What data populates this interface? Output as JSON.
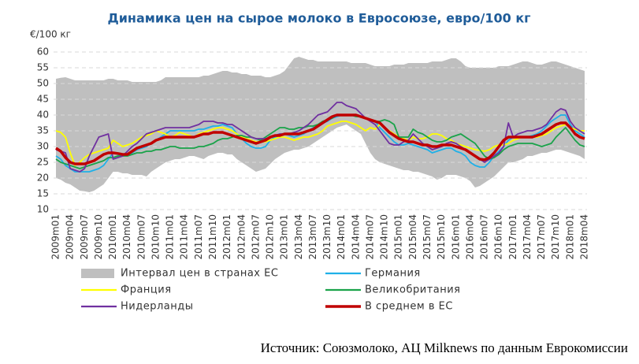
{
  "chart_data": {
    "type": "line",
    "title": "Динамика цен на сырое молоко в Евросоюзе, евро/100 кг",
    "y_axis_label": "€/100 кг",
    "source": "Источник: Союзмолоко, АЦ Milknews по данным Еврокомиссии",
    "categories": [
      "2009m01",
      null,
      null,
      "2009m04",
      null,
      null,
      "2009m07",
      null,
      null,
      "2009m10",
      null,
      null,
      "2010m01",
      null,
      null,
      "2010m04",
      null,
      null,
      "2010m07",
      null,
      null,
      "2010m10",
      null,
      null,
      "2011m01",
      null,
      null,
      "2011m04",
      null,
      null,
      "2011m07",
      null,
      null,
      "2011m10",
      null,
      null,
      "2012m01",
      null,
      null,
      "2012m04",
      null,
      null,
      "2012m07",
      null,
      null,
      "2012m10",
      null,
      null,
      "2013m01",
      null,
      null,
      "2013m04",
      null,
      null,
      "2013m07",
      null,
      null,
      "2013m10",
      null,
      null,
      "2014m01",
      null,
      null,
      "2014m04",
      null,
      null,
      "2014m07",
      null,
      null,
      "2014m10",
      null,
      null,
      "2015m01",
      null,
      null,
      "2015m04",
      null,
      null,
      "2015m07",
      null,
      null,
      "2015m10",
      null,
      null,
      "2016m01",
      null,
      null,
      "2016m04",
      null,
      null,
      "2016m07",
      null,
      null,
      "2016m10",
      null,
      null,
      "2017m01",
      null,
      null,
      "2017m04",
      null,
      null,
      "2017m07",
      null,
      null,
      "2017m10",
      null,
      null,
      "2018m01",
      null,
      null,
      "2018m04"
    ],
    "ylim": [
      10,
      60
    ],
    "yticks": [
      10,
      15,
      20,
      25,
      30,
      35,
      40,
      45,
      50,
      55,
      60
    ],
    "grid": true,
    "series": [
      {
        "name": "Интервал цен в странах ЕС",
        "color": "#bfbfbf",
        "high": [
          51.5,
          51.8,
          52,
          51.5,
          51,
          51,
          51,
          51,
          51,
          51,
          51,
          51.5,
          51.5,
          51,
          51,
          51,
          50.5,
          50.5,
          50.5,
          50.5,
          50.5,
          50.5,
          51,
          52,
          52,
          52,
          52,
          52,
          52,
          52,
          52,
          52.5,
          52.5,
          53,
          53.5,
          54,
          54,
          53.5,
          53.5,
          53,
          53,
          52.5,
          52.5,
          52.5,
          52,
          52,
          52.5,
          53,
          54,
          56,
          58,
          58.5,
          58,
          57.5,
          57.5,
          57,
          57,
          57,
          57,
          57,
          57,
          57,
          56.5,
          56.5,
          56.5,
          56.5,
          56,
          55.5,
          55.5,
          55.5,
          55.5,
          56,
          56,
          56,
          56.5,
          56.5,
          56.5,
          56.5,
          56.5,
          57,
          57,
          57,
          57.5,
          58,
          58,
          57,
          55.5,
          55,
          55,
          55,
          55,
          55,
          55,
          55.5,
          55.5,
          55.5,
          56,
          56.5,
          57,
          57,
          56.5,
          56,
          56,
          56.5,
          57,
          57,
          56.5,
          56,
          55.5,
          55,
          54.5,
          54
        ],
        "low": [
          20,
          19.5,
          18.5,
          18,
          17,
          16,
          15.8,
          15.5,
          16,
          17,
          18,
          20,
          22,
          22,
          21.5,
          21.5,
          21,
          21,
          21,
          20.5,
          22,
          23,
          24,
          25,
          25.5,
          26,
          26,
          26.5,
          27,
          27,
          26.5,
          26,
          27,
          27.5,
          28,
          28,
          27.5,
          27.5,
          26,
          25,
          24,
          23,
          22,
          22.5,
          23,
          24.5,
          26,
          27,
          28,
          28.5,
          29,
          29,
          29.5,
          30,
          31,
          32,
          33,
          34,
          35,
          36,
          36.5,
          37,
          36,
          35,
          34,
          31,
          28,
          26,
          25,
          24.5,
          24,
          23.5,
          23,
          22.5,
          22.5,
          22,
          22,
          21.5,
          21,
          20.5,
          19.5,
          20,
          21,
          21,
          21,
          20.5,
          20,
          19,
          17,
          17.5,
          18.5,
          19.5,
          20.5,
          22,
          23.5,
          25,
          25,
          25.5,
          26,
          27,
          27,
          27.5,
          28,
          28,
          28.5,
          29,
          29,
          28.5,
          28,
          27.5,
          27,
          26
        ]
      },
      {
        "name": "Германия",
        "color": "#1fb0e8",
        "values": [
          27,
          26,
          24,
          23,
          22,
          22,
          22,
          22,
          22.5,
          23,
          24,
          26,
          28,
          27.5,
          27,
          27.5,
          28,
          29,
          29.5,
          30,
          31,
          32,
          33,
          34,
          35,
          35,
          35,
          35,
          35,
          35,
          35.5,
          35.5,
          36,
          36.5,
          36.5,
          37,
          36.5,
          36,
          34,
          32.5,
          31,
          30,
          29.5,
          29.5,
          30,
          32,
          33,
          33.5,
          34,
          33.5,
          33,
          33.5,
          34,
          35,
          36,
          36.5,
          37.5,
          38,
          39,
          39.5,
          40,
          40,
          40,
          40,
          39.5,
          39,
          38.5,
          38,
          36,
          34.5,
          33,
          31.5,
          30.5,
          30.5,
          31,
          30.5,
          30,
          29.5,
          29,
          28,
          28.5,
          29,
          29.5,
          29.5,
          28.5,
          28,
          27,
          25,
          24,
          23.5,
          23.5,
          25,
          27,
          28.5,
          30,
          32,
          33,
          33,
          33,
          33,
          33.5,
          34,
          35,
          36.5,
          38,
          39,
          40,
          40,
          37,
          35,
          34,
          33
        ]
      },
      {
        "name": "Франция",
        "color": "#ffff00",
        "values": [
          35,
          34.5,
          33,
          28,
          24,
          25,
          26.5,
          27.5,
          28,
          28.5,
          29,
          29.5,
          32,
          31,
          30,
          30.5,
          31,
          32,
          33,
          33.5,
          34,
          35,
          34.5,
          34,
          33,
          33.5,
          34.5,
          34,
          33.5,
          33,
          34,
          34.5,
          35,
          35.5,
          36,
          36,
          35.5,
          35,
          34,
          33,
          32.5,
          32,
          31.5,
          31.5,
          31.5,
          32,
          32.5,
          33,
          33,
          32.5,
          32,
          32.5,
          33,
          33,
          33.5,
          34,
          35,
          36.5,
          37,
          37.5,
          38,
          38,
          37.5,
          37,
          36,
          35,
          36,
          35.5,
          37,
          36,
          35,
          34,
          33,
          32.5,
          32,
          33,
          32.5,
          32.5,
          33,
          34,
          34,
          33.5,
          32.5,
          32,
          31,
          30.5,
          30,
          29.5,
          29,
          28.8,
          28.5,
          29,
          30,
          30.5,
          30.5,
          31,
          32,
          32.5,
          33,
          33,
          33,
          33,
          33.5,
          34,
          35,
          36,
          36.5,
          37,
          36,
          35.5,
          35,
          35
        ]
      },
      {
        "name": "Великобритания",
        "color": "#1aa34a",
        "values": [
          26,
          25,
          24.5,
          24,
          23.5,
          23,
          23.5,
          24,
          24.5,
          25,
          25.5,
          26.5,
          26.5,
          27,
          27,
          27,
          27.5,
          28,
          28,
          28.5,
          28.5,
          29,
          29,
          29.5,
          30,
          30,
          29.5,
          29.5,
          29.5,
          29.5,
          30,
          30,
          30.5,
          31,
          32,
          32.5,
          32.5,
          33,
          33.5,
          33.5,
          33,
          33,
          32.5,
          32,
          33,
          34,
          35,
          36,
          36,
          35.5,
          35.5,
          36,
          36,
          36.5,
          36.5,
          37,
          38,
          38.5,
          39,
          40,
          40,
          40,
          40,
          39.5,
          39.5,
          39,
          38.5,
          38,
          38,
          38.5,
          38,
          37,
          33,
          33,
          33,
          35.5,
          34.5,
          34,
          33,
          32,
          31.5,
          31.5,
          32,
          33,
          33.5,
          34,
          33,
          32,
          31,
          29,
          27,
          26,
          26.5,
          27.5,
          29,
          30,
          30.5,
          31,
          31,
          31,
          31,
          30.5,
          30,
          30.5,
          31,
          33,
          34.5,
          36,
          34,
          32,
          30.5,
          30
        ]
      },
      {
        "name": "Нидерланды",
        "color": "#7030a0",
        "values": [
          29,
          28.5,
          28,
          23,
          22.5,
          22,
          23,
          27,
          30,
          33,
          33.5,
          34,
          26,
          26.5,
          27,
          28.5,
          30,
          31,
          32.5,
          34,
          34.5,
          35,
          35.5,
          36,
          36,
          36,
          36,
          36,
          36,
          36.5,
          37,
          38,
          38,
          38,
          37.5,
          37.5,
          37,
          37,
          36,
          35,
          34,
          33,
          32.5,
          32.5,
          32.5,
          33,
          33.5,
          34,
          34,
          34,
          34.5,
          35,
          36,
          37,
          38.5,
          40,
          40.5,
          41,
          42.5,
          44,
          44,
          43,
          42.5,
          42,
          40.5,
          39,
          38,
          37,
          35,
          33,
          31,
          30.5,
          30.5,
          31.5,
          32,
          34,
          32.5,
          31,
          30,
          29,
          29.5,
          30,
          31,
          31.5,
          31,
          30,
          29,
          28,
          27,
          26,
          25,
          26,
          27,
          28,
          30,
          37.5,
          33,
          34,
          34.5,
          35,
          35,
          35.5,
          36,
          37,
          39,
          41,
          42,
          41.5,
          38,
          36,
          35,
          34
        ]
      },
      {
        "name": "В среднем в ЕС",
        "color": "#c00000",
        "values": [
          29.5,
          28.5,
          26.5,
          25,
          24.5,
          24.5,
          24.5,
          25,
          25.5,
          26.5,
          27.5,
          28,
          28,
          27.8,
          27.5,
          27.5,
          28.5,
          29.5,
          30,
          30.5,
          31,
          32,
          32.5,
          33,
          33,
          33,
          33,
          33,
          33,
          33,
          33.5,
          34,
          34,
          34.5,
          34.5,
          34.5,
          34,
          33.5,
          33,
          32.5,
          32,
          31.5,
          31,
          31.5,
          32,
          33,
          33.5,
          33.5,
          34,
          34,
          34,
          34,
          34.5,
          35,
          35.5,
          36.5,
          37.5,
          38.5,
          39.5,
          40,
          40,
          40,
          40,
          40,
          39.5,
          39,
          38.5,
          38,
          37.5,
          36,
          34.5,
          33.5,
          32.5,
          32,
          31.5,
          31.5,
          31,
          30.5,
          30.5,
          30,
          30,
          30.5,
          30.5,
          30.5,
          30,
          29.5,
          29,
          28,
          27,
          26,
          25.8,
          26.5,
          28,
          30,
          32,
          33,
          33,
          33,
          33,
          33,
          33,
          33.5,
          34,
          35,
          36,
          37,
          37.5,
          37.5,
          36,
          34,
          33,
          32.5
        ]
      }
    ]
  }
}
